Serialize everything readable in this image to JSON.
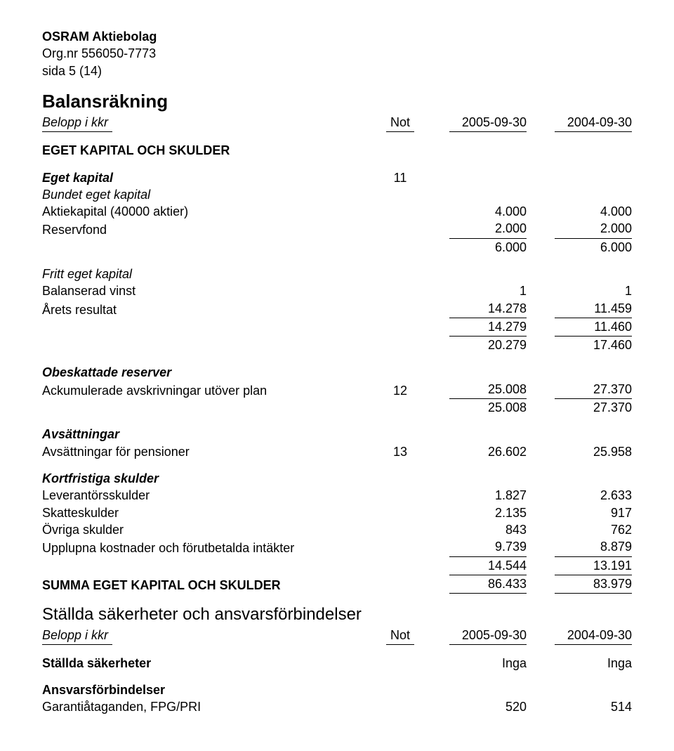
{
  "header": {
    "company": "OSRAM Aktiebolag",
    "orgnr": "Org.nr 556050-7773",
    "page": "sida 5 (14)"
  },
  "title": "Balansräkning",
  "columns": {
    "desc": "Belopp i kkr",
    "not": "Not",
    "a": "2005-09-30",
    "b": "2004-09-30"
  },
  "section1": {
    "heading": "EGET KAPITAL OCH SKULDER",
    "eget_kapital": {
      "label": "Eget kapital",
      "not": "11",
      "bundet": "Bundet eget kapital",
      "aktiekapital": {
        "label": "Aktiekapital (40000 aktier)",
        "a": "4.000",
        "b": "4.000"
      },
      "reservfond": {
        "label": "Reservfond",
        "a": "2.000",
        "b": "2.000"
      },
      "subtotal1": {
        "a": "6.000",
        "b": "6.000"
      },
      "fritt": "Fritt eget kapital",
      "balanserad": {
        "label": "Balanserad vinst",
        "a": "1",
        "b": "1"
      },
      "arets": {
        "label": "Årets resultat",
        "a": "14.278",
        "b": "11.459"
      },
      "subtotal2": {
        "a": "14.279",
        "b": "11.460"
      },
      "subtotal3": {
        "a": "20.279",
        "b": "17.460"
      }
    },
    "obeskattade": {
      "label": "Obeskattade reserver",
      "ack": {
        "label": "Ackumulerade avskrivningar utöver plan",
        "not": "12",
        "a": "25.008",
        "b": "27.370"
      },
      "subtotal": {
        "a": "25.008",
        "b": "27.370"
      }
    },
    "avs": {
      "label": "Avsättningar",
      "pension": {
        "label": "Avsättningar för pensioner",
        "not": "13",
        "a": "26.602",
        "b": "25.958"
      }
    },
    "kort": {
      "label": "Kortfristiga skulder",
      "lev": {
        "label": "Leverantörsskulder",
        "a": "1.827",
        "b": "2.633"
      },
      "skatt": {
        "label": "Skatteskulder",
        "a": "2.135",
        "b": "917"
      },
      "ovriga": {
        "label": "Övriga skulder",
        "a": "843",
        "b": "762"
      },
      "upplupna": {
        "label": "Upplupna kostnader och förutbetalda intäkter",
        "a": "9.739",
        "b": "8.879"
      },
      "subtotal": {
        "a": "14.544",
        "b": "13.191"
      }
    },
    "summa": {
      "label": "SUMMA EGET KAPITAL OCH SKULDER",
      "a": "86.433",
      "b": "83.979"
    }
  },
  "section2": {
    "heading": "Ställda säkerheter och ansvarsförbindelser",
    "columns": {
      "desc": "Belopp i kkr",
      "not": "Not",
      "a": "2005-09-30",
      "b": "2004-09-30"
    },
    "sakerheter": {
      "label": "Ställda säkerheter",
      "a": "Inga",
      "b": "Inga"
    },
    "ansvar_label": "Ansvarsförbindelser",
    "garantier": {
      "label": "Garantiåtaganden, FPG/PRI",
      "a": "520",
      "b": "514"
    }
  }
}
